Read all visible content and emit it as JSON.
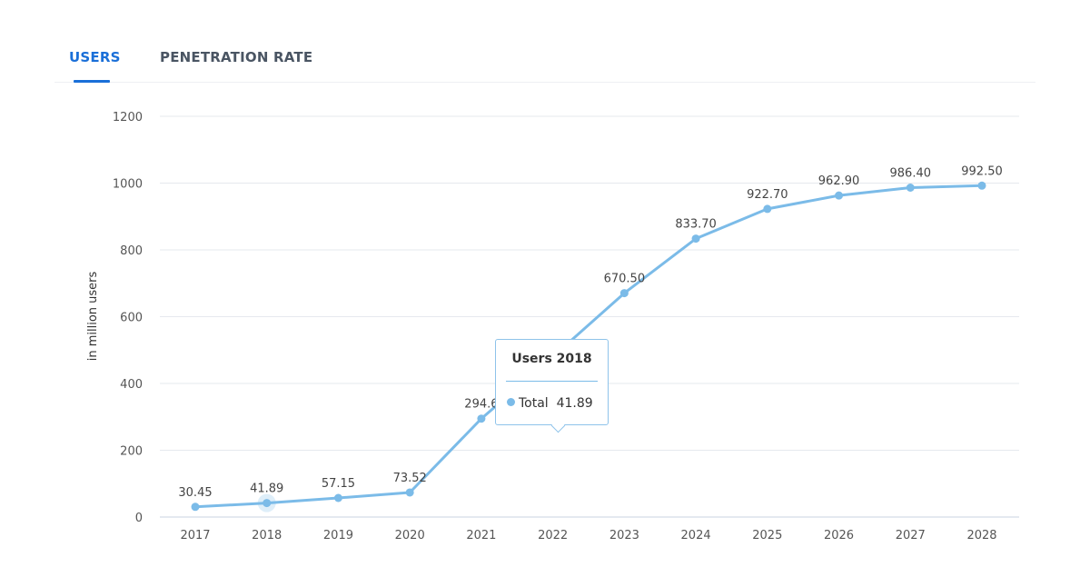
{
  "tabs": [
    {
      "label": "USERS",
      "active": true
    },
    {
      "label": "PENETRATION RATE",
      "active": false
    }
  ],
  "colors": {
    "accent": "#1a6fd8",
    "series": "#7bbbe8",
    "grid": "#e6e9ee"
  },
  "tooltip": {
    "title": "Users 2018",
    "series": "Total",
    "value": "41.89"
  },
  "chart_data": {
    "type": "line",
    "ylabel": "in million users",
    "xlabel": "",
    "ylim": [
      0,
      1200
    ],
    "yticks": [
      "0",
      "200",
      "400",
      "600",
      "800",
      "1000",
      "1200"
    ],
    "grid": true,
    "categories": [
      "2017",
      "2018",
      "2019",
      "2020",
      "2021",
      "2022",
      "2023",
      "2024",
      "2025",
      "2026",
      "2027",
      "2028"
    ],
    "series": [
      {
        "name": "Total",
        "values": [
          30.45,
          41.89,
          57.15,
          73.52,
          294.6,
          480,
          670.5,
          833.7,
          922.7,
          962.9,
          986.4,
          992.5
        ],
        "labels": [
          "30.45",
          "41.89",
          "57.15",
          "73.52",
          "294.6",
          "",
          "670.50",
          "833.70",
          "922.70",
          "962.90",
          "986.40",
          "992.50"
        ]
      }
    ],
    "highlighted_category": "2018"
  }
}
